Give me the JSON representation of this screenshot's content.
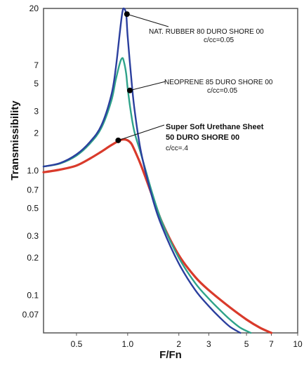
{
  "chart_data": {
    "type": "line",
    "xlabel": "F/Fn",
    "ylabel": "Transmissibility",
    "x_scale": "log",
    "y_scale": "log",
    "xlim": [
      0.32,
      10
    ],
    "ylim": [
      0.05,
      20
    ],
    "x_ticks": [
      {
        "value": 0.5,
        "label": "0.5"
      },
      {
        "value": 1.0,
        "label": "1.0"
      },
      {
        "value": 2,
        "label": "2"
      },
      {
        "value": 3,
        "label": "3"
      },
      {
        "value": 5,
        "label": "5"
      },
      {
        "value": 7,
        "label": "7"
      },
      {
        "value": 10,
        "label": "10"
      }
    ],
    "y_ticks": [
      {
        "value": 20,
        "label": "20"
      },
      {
        "value": 7,
        "label": "7"
      },
      {
        "value": 5,
        "label": "5"
      },
      {
        "value": 3,
        "label": "3"
      },
      {
        "value": 2,
        "label": "2"
      },
      {
        "value": 1,
        "label": "1.0"
      },
      {
        "value": 0.7,
        "label": "0.7"
      },
      {
        "value": 0.5,
        "label": "0.5"
      },
      {
        "value": 0.3,
        "label": "0.3"
      },
      {
        "value": 0.2,
        "label": "0.2"
      },
      {
        "value": 0.1,
        "label": "0.1"
      },
      {
        "value": 0.07,
        "label": "0.07"
      }
    ],
    "grid": false,
    "series": [
      {
        "key": "rubber",
        "color": "#2b3f9e",
        "x": [
          0.32,
          0.4,
          0.5,
          0.6,
          0.7,
          0.8,
          0.85,
          0.9,
          0.93,
          0.95,
          0.98,
          1.0,
          1.05,
          1.1,
          1.2,
          1.4,
          1.6,
          2.0,
          2.5,
          3.0,
          3.5,
          4.0,
          4.6
        ],
        "y": [
          1.08,
          1.15,
          1.35,
          1.7,
          2.3,
          4.0,
          6.5,
          13.0,
          18.5,
          20.0,
          18.0,
          12.0,
          5.5,
          3.0,
          1.4,
          0.6,
          0.35,
          0.18,
          0.11,
          0.082,
          0.066,
          0.056,
          0.05
        ]
      },
      {
        "key": "neoprene",
        "color": "#2fa38a",
        "x": [
          0.32,
          0.4,
          0.5,
          0.6,
          0.7,
          0.8,
          0.85,
          0.9,
          0.93,
          0.95,
          0.98,
          1.0,
          1.05,
          1.1,
          1.2,
          1.4,
          1.6,
          2.0,
          2.5,
          3.0,
          3.5,
          4.0,
          4.6,
          5.3
        ],
        "y": [
          1.08,
          1.14,
          1.32,
          1.65,
          2.2,
          3.6,
          5.3,
          7.3,
          8.0,
          7.5,
          6.0,
          4.6,
          2.8,
          2.0,
          1.35,
          0.65,
          0.38,
          0.2,
          0.125,
          0.094,
          0.076,
          0.064,
          0.055,
          0.05
        ]
      },
      {
        "key": "urethane",
        "color": "#d93a2b",
        "x": [
          0.32,
          0.4,
          0.5,
          0.6,
          0.7,
          0.8,
          0.9,
          0.95,
          1.0,
          1.05,
          1.1,
          1.2,
          1.4,
          1.6,
          2.0,
          2.5,
          3.0,
          4.0,
          5.0,
          6.0,
          7.0
        ],
        "y": [
          0.97,
          1.02,
          1.1,
          1.25,
          1.42,
          1.6,
          1.75,
          1.78,
          1.75,
          1.65,
          1.45,
          1.1,
          0.62,
          0.38,
          0.21,
          0.14,
          0.11,
          0.08,
          0.064,
          0.055,
          0.05
        ]
      }
    ],
    "annotations": [
      {
        "series": "rubber",
        "x": 0.99,
        "y": 18.0,
        "lines": [
          "NAT. RUBBER 80 DURO SHORE 00",
          "c/cc=0.05"
        ]
      },
      {
        "series": "neoprene",
        "x": 1.03,
        "y": 4.4,
        "lines": [
          "NEOPRENE 85 DURO SHORE 00",
          "c/cc=0.05"
        ]
      },
      {
        "series": "urethane",
        "x": 0.88,
        "y": 1.75,
        "lines": [
          "Super Soft Urethane Sheet",
          "50 DURO SHORE 00",
          "c/cc=.4"
        ]
      }
    ]
  }
}
